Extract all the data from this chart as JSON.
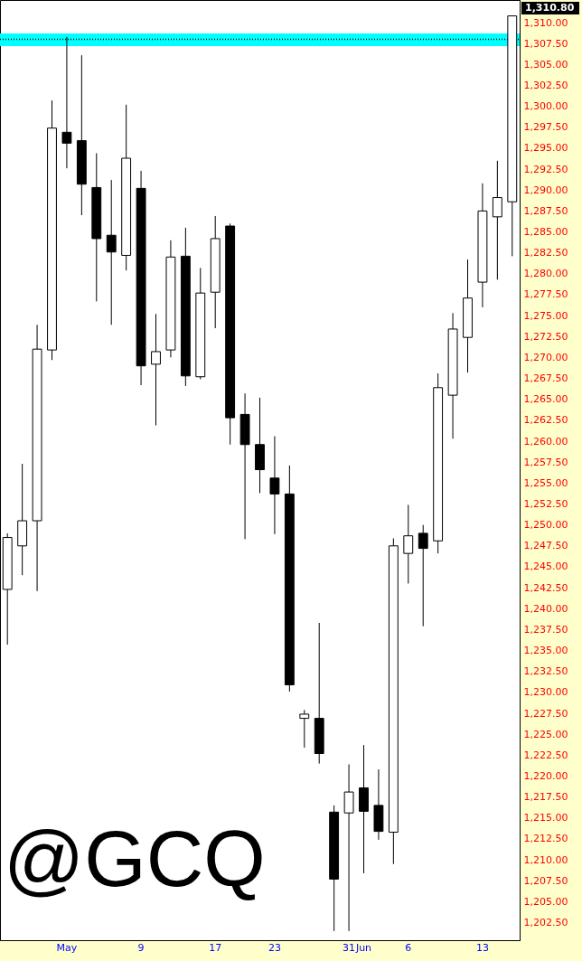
{
  "chart_data": {
    "type": "candlestick",
    "categories": [
      null,
      null,
      null,
      null,
      "May",
      null,
      null,
      null,
      null,
      "9",
      null,
      null,
      null,
      null,
      "17",
      null,
      null,
      null,
      "23",
      null,
      null,
      null,
      null,
      "31",
      "Jun",
      null,
      null,
      "6",
      null,
      null,
      null,
      null,
      "13",
      null,
      null
    ],
    "ohlc": [
      [
        1242.3,
        1249.0,
        1235.7,
        1248.5
      ],
      [
        1247.5,
        1257.3,
        1244.0,
        1250.5
      ],
      [
        1250.5,
        1273.9,
        1242.1,
        1271.0
      ],
      [
        1270.9,
        1300.7,
        1269.7,
        1297.4
      ],
      [
        1296.9,
        1308.3,
        1292.6,
        1295.6
      ],
      [
        1295.9,
        1306.1,
        1287.0,
        1290.7
      ],
      [
        1290.3,
        1294.4,
        1276.7,
        1284.2
      ],
      [
        1284.6,
        1291.2,
        1273.9,
        1282.6
      ],
      [
        1282.2,
        1300.2,
        1280.4,
        1293.8
      ],
      [
        1290.2,
        1292.3,
        1266.7,
        1269.0
      ],
      [
        1269.2,
        1275.2,
        1261.9,
        1270.7
      ],
      [
        1270.9,
        1284.0,
        1270.0,
        1282.0
      ],
      [
        1282.1,
        1285.5,
        1266.6,
        1267.8
      ],
      [
        1267.7,
        1280.7,
        1267.4,
        1277.7
      ],
      [
        1277.8,
        1286.9,
        1273.5,
        1284.2
      ],
      [
        1285.7,
        1286.0,
        1259.6,
        1262.8
      ],
      [
        1263.2,
        1265.7,
        1248.3,
        1259.6
      ],
      [
        1259.6,
        1265.2,
        1253.8,
        1256.6
      ],
      [
        1255.6,
        1260.6,
        1248.9,
        1253.7
      ],
      [
        1253.7,
        1257.1,
        1230.1,
        1230.9
      ],
      [
        1226.9,
        1227.9,
        1223.4,
        1227.4
      ],
      [
        1226.9,
        1238.3,
        1221.5,
        1222.7
      ],
      [
        1215.7,
        1216.5,
        1201.5,
        1207.7
      ],
      [
        1215.6,
        1221.4,
        1201.5,
        1218.1
      ],
      [
        1218.6,
        1223.7,
        1208.4,
        1215.8
      ],
      [
        1216.5,
        1220.8,
        1212.4,
        1213.4
      ],
      [
        1213.3,
        1248.4,
        1209.5,
        1247.5
      ],
      [
        1246.6,
        1252.4,
        1243.0,
        1248.7
      ],
      [
        1249.0,
        1250.0,
        1237.9,
        1247.2
      ],
      [
        1248.1,
        1268.1,
        1246.6,
        1266.4
      ],
      [
        1265.5,
        1275.3,
        1260.3,
        1273.4
      ],
      [
        1272.4,
        1281.7,
        1268.2,
        1277.1
      ],
      [
        1279.0,
        1290.8,
        1276.0,
        1287.5
      ],
      [
        1286.8,
        1293.5,
        1279.3,
        1289.1
      ],
      [
        1288.6,
        1310.8,
        1282.1,
        1310.8
      ]
    ],
    "colors": [
      "#ffffff",
      "#ffffff",
      "#ffffff",
      "#ffffff",
      "#000000",
      "#000000",
      "#000000",
      "#000000",
      "#ffffff",
      "#000000",
      "#ffffff",
      "#ffffff",
      "#000000",
      "#ffffff",
      "#ffffff",
      "#000000",
      "#000000",
      "#000000",
      "#000000",
      "#000000",
      "#ffffff",
      "#000000",
      "#000000",
      "#ffffff",
      "#000000",
      "#000000",
      "#ffffff",
      "#ffffff",
      "#000000",
      "#ffffff",
      "#ffffff",
      "#ffffff",
      "#ffffff",
      "#ffffff",
      "#ffffff"
    ],
    "ylim": [
      1200.4,
      1312.7
    ],
    "yticks": [
      {
        "value": 1202.5,
        "label": "1,202.50"
      },
      {
        "value": 1205,
        "label": "1,205.00"
      },
      {
        "value": 1207.5,
        "label": "1,207.50"
      },
      {
        "value": 1210,
        "label": "1,210.00"
      },
      {
        "value": 1212.5,
        "label": "1,212.50"
      },
      {
        "value": 1215,
        "label": "1,215.00"
      },
      {
        "value": 1217.5,
        "label": "1,217.50"
      },
      {
        "value": 1220,
        "label": "1,220.00"
      },
      {
        "value": 1222.5,
        "label": "1,222.50"
      },
      {
        "value": 1225,
        "label": "1,225.00"
      },
      {
        "value": 1227.5,
        "label": "1,227.50"
      },
      {
        "value": 1230,
        "label": "1,230.00"
      },
      {
        "value": 1232.5,
        "label": "1,232.50"
      },
      {
        "value": 1235,
        "label": "1,235.00"
      },
      {
        "value": 1237.5,
        "label": "1,237.50"
      },
      {
        "value": 1240,
        "label": "1,240.00"
      },
      {
        "value": 1242.5,
        "label": "1,242.50"
      },
      {
        "value": 1245,
        "label": "1,245.00"
      },
      {
        "value": 1247.5,
        "label": "1,247.50"
      },
      {
        "value": 1250,
        "label": "1,250.00"
      },
      {
        "value": 1252.5,
        "label": "1,252.50"
      },
      {
        "value": 1255,
        "label": "1,255.00"
      },
      {
        "value": 1257.5,
        "label": "1,257.50"
      },
      {
        "value": 1260,
        "label": "1,260.00"
      },
      {
        "value": 1262.5,
        "label": "1,262.50"
      },
      {
        "value": 1265,
        "label": "1,265.00"
      },
      {
        "value": 1267.5,
        "label": "1,267.50"
      },
      {
        "value": 1270,
        "label": "1,270.00"
      },
      {
        "value": 1272.5,
        "label": "1,272.50"
      },
      {
        "value": 1275,
        "label": "1,275.00"
      },
      {
        "value": 1277.5,
        "label": "1,277.50"
      },
      {
        "value": 1280,
        "label": "1,280.00"
      },
      {
        "value": 1282.5,
        "label": "1,282.50"
      },
      {
        "value": 1285,
        "label": "1,285.00"
      },
      {
        "value": 1287.5,
        "label": "1,287.50"
      },
      {
        "value": 1290,
        "label": "1,290.00"
      },
      {
        "value": 1292.5,
        "label": "1,292.50"
      },
      {
        "value": 1295,
        "label": "1,295.00"
      },
      {
        "value": 1297.5,
        "label": "1,297.50"
      },
      {
        "value": 1300,
        "label": "1,300.00"
      },
      {
        "value": 1302.5,
        "label": "1,302.50"
      },
      {
        "value": 1305,
        "label": "1,305.00"
      },
      {
        "value": 1307.5,
        "label": "1,307.50"
      },
      {
        "value": 1310,
        "label": "1,310.00"
      }
    ],
    "bands": [
      {
        "axis": "y",
        "from": 1307.2,
        "to": 1308.7,
        "color": "#00ffff"
      }
    ],
    "ref_lines": [
      {
        "axis": "y",
        "value": 1308.0,
        "color": "#000000",
        "line_style": "dotted"
      }
    ],
    "annotations": [
      "@GCQ",
      "1,310.80"
    ]
  }
}
